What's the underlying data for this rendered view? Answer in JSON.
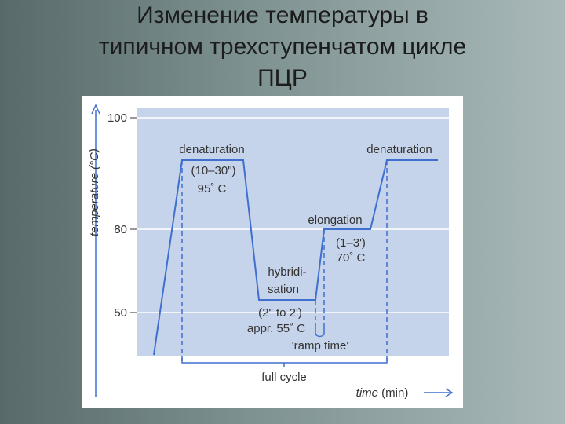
{
  "header": {
    "title_lines": [
      "Изменение температуры в",
      "типичном трехступенчатом цикле",
      "ПЦР"
    ]
  },
  "diagram": {
    "y_axis_label": "temperature (°C)",
    "y_ticks": [
      "100",
      "80",
      "50"
    ],
    "x_axis_label": "time",
    "x_axis_unit": "(min)",
    "denaturation_1": {
      "label": "denaturation",
      "duration": "(10–30\")",
      "temperature": "95˚ C"
    },
    "hybridisation": {
      "label_lines": [
        "hybridi-",
        "sation"
      ],
      "duration": "(2\" to 2')",
      "temperature": "appr. 55˚ C"
    },
    "ramp_time": "'ramp time'",
    "elongation": {
      "label": "elongation",
      "duration": "(1–3')",
      "temperature": "70˚ C"
    },
    "denaturation_2": {
      "label": "denaturation"
    },
    "cycle_label": "full cycle"
  }
}
